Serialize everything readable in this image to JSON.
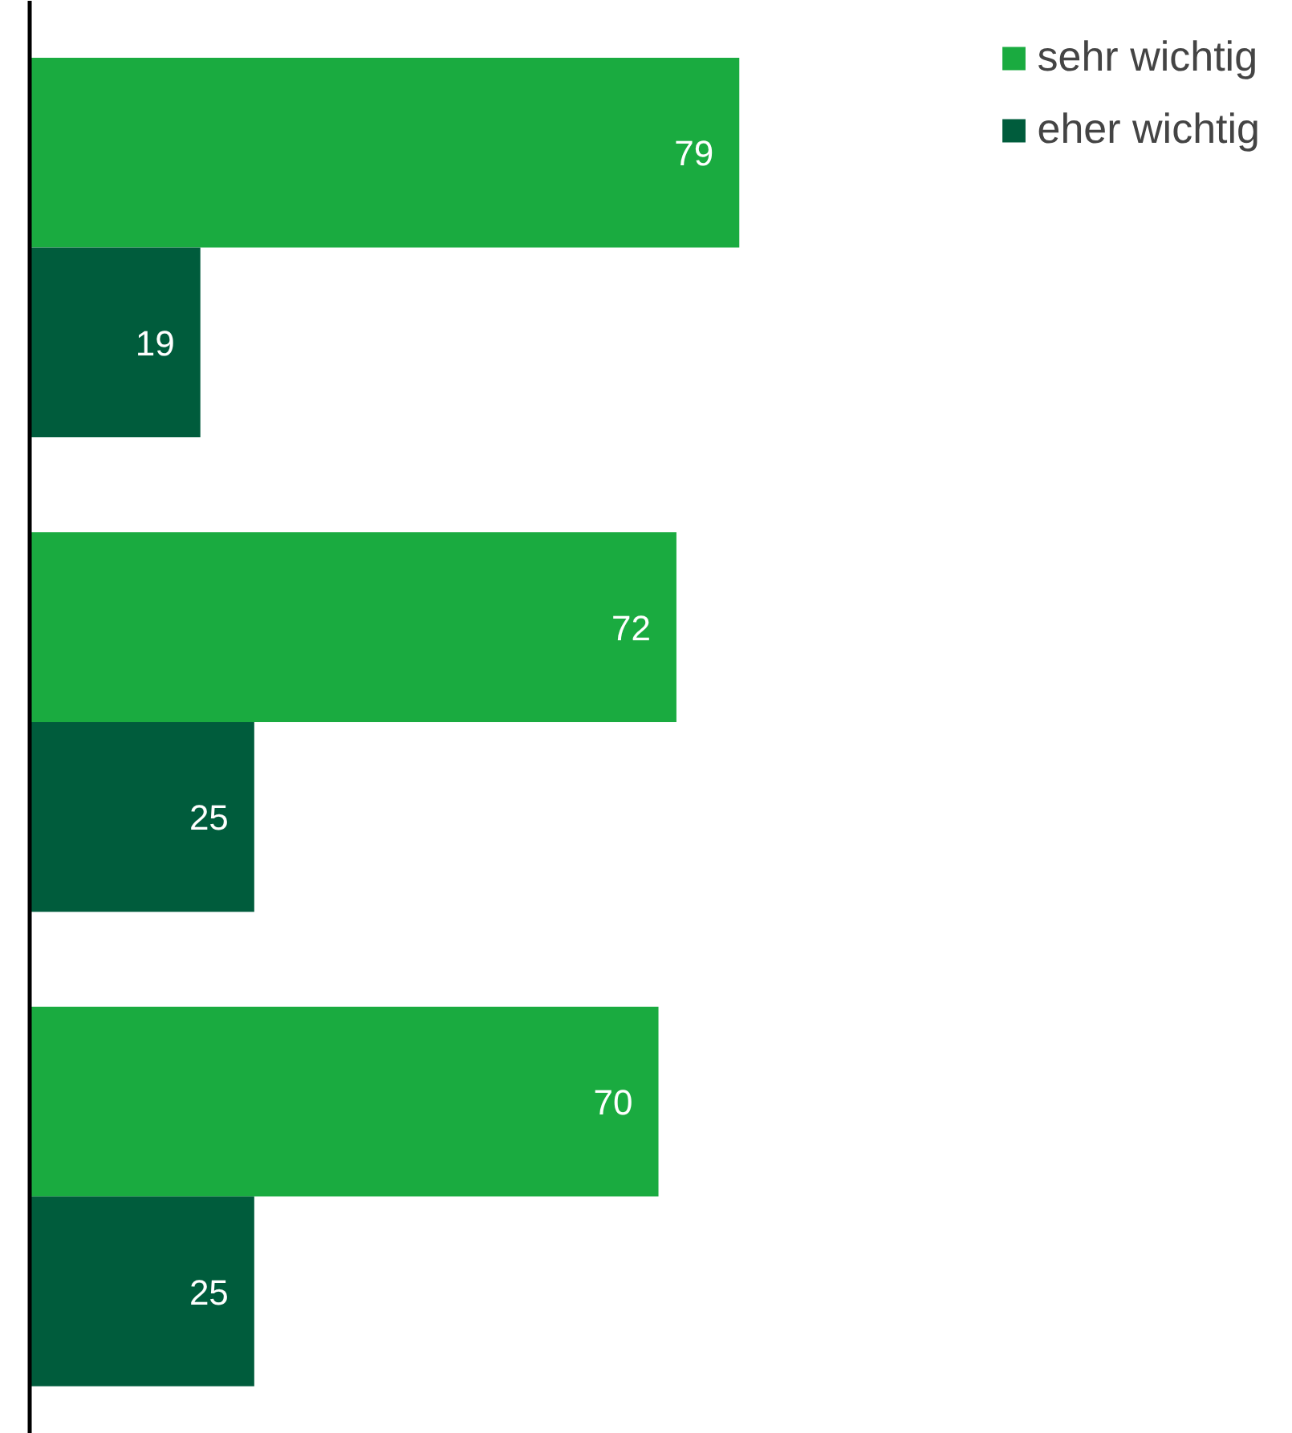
{
  "chart_data": {
    "type": "bar",
    "orientation": "horizontal",
    "categories": [
      null,
      null,
      null
    ],
    "series": [
      {
        "name": "sehr wichtig",
        "color": "#1aab40",
        "values": [
          79,
          72,
          70
        ]
      },
      {
        "name": "eher wichtig",
        "color": "#005c3c",
        "values": [
          19,
          25,
          25
        ]
      }
    ],
    "data_labels": true,
    "legend": "top right",
    "grid": false
  }
}
